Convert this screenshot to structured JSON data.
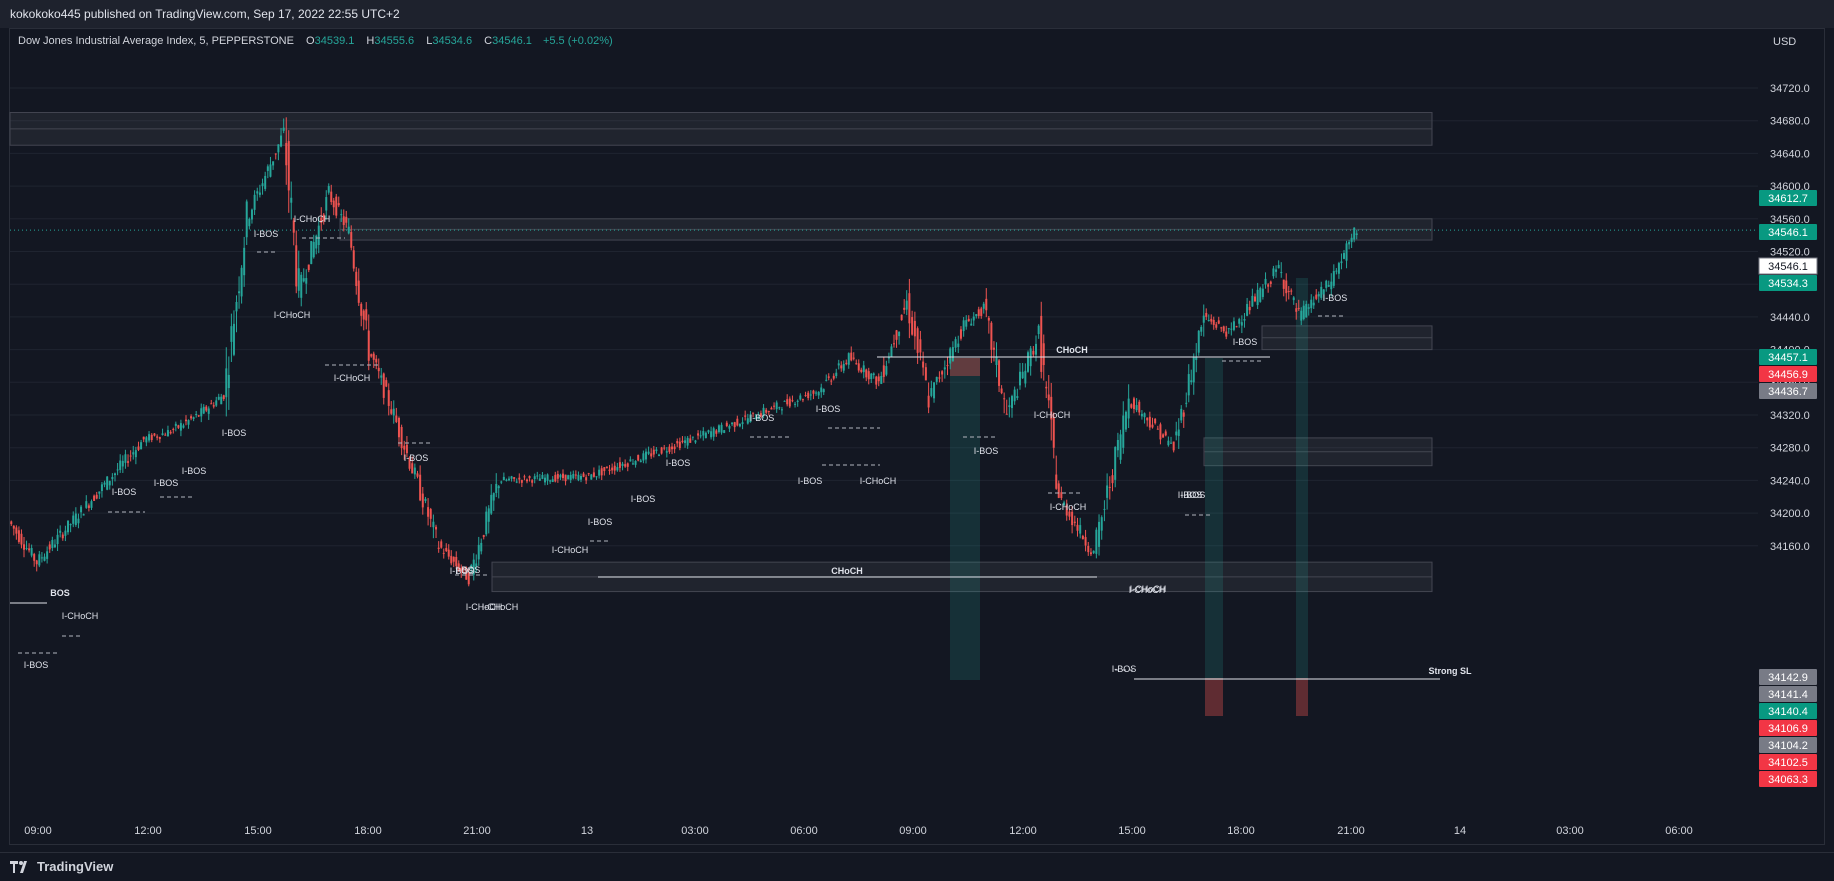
{
  "header": {
    "publisher_text": "kokokoko445 published on TradingView.com, Sep 17, 2022 22:55 UTC+2"
  },
  "legend": {
    "symbol": "Dow Jones Industrial Average Index, 5, PEPPERSTONE",
    "o_label": "O",
    "o_value": "34539.1",
    "h_label": "H",
    "h_value": "34555.6",
    "l_label": "L",
    "l_value": "34534.6",
    "c_label": "C",
    "c_value": "34546.1",
    "change": "+5.5 (+0.02%)"
  },
  "footer": {
    "brand": "TradingView"
  },
  "colors": {
    "background": "#131722",
    "up": "#26a69a",
    "down": "#ef5350",
    "zone_fill": "#2a2e39",
    "zone_border": "#434651",
    "grey_label": "#787b86"
  },
  "chart_data": {
    "type": "candlestick",
    "currency_label": "USD",
    "ylim": [
      34020,
      34760
    ],
    "y_ticks": [
      "34720.0",
      "34680.0",
      "34640.0",
      "34600.0",
      "34560.0",
      "34520.0",
      "34480.0",
      "34440.0",
      "34400.0",
      "34360.0",
      "34320.0",
      "34280.0",
      "34240.0",
      "34200.0",
      "34160.0"
    ],
    "x_ticks": [
      "09:00",
      "12:00",
      "15:00",
      "18:00",
      "21:00",
      "13",
      "03:00",
      "06:00",
      "09:00",
      "12:00",
      "15:00",
      "18:00",
      "21:00",
      "14",
      "03:00",
      "06:00"
    ],
    "price_path": [
      [
        "09:00",
        34190
      ],
      [
        "10:00",
        34140
      ],
      [
        "11:00",
        34290
      ],
      [
        "12:00",
        34300
      ],
      [
        "13:00",
        34320
      ],
      [
        "14:00",
        34345
      ],
      [
        "15:00",
        34560
      ],
      [
        "15:40",
        34665
      ],
      [
        "16:30",
        34470
      ],
      [
        "17:30",
        34590
      ],
      [
        "18:00",
        34545
      ],
      [
        "19:00",
        34400
      ],
      [
        "20:00",
        34320
      ],
      [
        "21:00",
        34160
      ],
      [
        "21:30",
        34120
      ],
      [
        "22:00",
        34240
      ],
      [
        "13",
        34245
      ],
      [
        "01:00",
        34300
      ],
      [
        "03:00",
        34350
      ],
      [
        "06:00",
        34390
      ],
      [
        "07:00",
        34360
      ],
      [
        "08:00",
        34458
      ],
      [
        "09:00",
        34340
      ],
      [
        "10:00",
        34430
      ],
      [
        "11:00",
        34450
      ],
      [
        "12:00",
        34320
      ],
      [
        "13:00",
        34420
      ],
      [
        "14:00",
        34220
      ],
      [
        "15:00",
        34150
      ],
      [
        "16:00",
        34340
      ],
      [
        "17:00",
        34280
      ],
      [
        "18:00",
        34440
      ],
      [
        "19:00",
        34420
      ],
      [
        "19:30",
        34500
      ],
      [
        "20:00",
        34440
      ],
      [
        "21:00",
        34480
      ],
      [
        "21:10",
        34546
      ]
    ],
    "price_labels": [
      {
        "value": "34612.7",
        "color": "#089981"
      },
      {
        "value": "34546.1",
        "color": "#089981"
      },
      {
        "value": "34546.1",
        "color": "#ffffff",
        "text": "#131722"
      },
      {
        "value": "34534.3",
        "color": "#089981"
      },
      {
        "value": "34457.1",
        "color": "#089981"
      },
      {
        "value": "34456.9",
        "color": "#f23645"
      },
      {
        "value": "34436.7",
        "color": "#787b86"
      },
      {
        "value": "34142.9",
        "color": "#787b86"
      },
      {
        "value": "34141.4",
        "color": "#787b86"
      },
      {
        "value": "34140.4",
        "color": "#089981"
      },
      {
        "value": "34106.9",
        "color": "#f23645"
      },
      {
        "value": "34104.2",
        "color": "#787b86"
      },
      {
        "value": "34102.5",
        "color": "#f23645"
      },
      {
        "value": "34063.3",
        "color": "#f23645"
      }
    ],
    "zones": [
      {
        "x0": "08:50",
        "x1": "21:50 (13)",
        "top": 34690,
        "bottom": 34650
      },
      {
        "x0": "18:00",
        "x1": "21:50 (13)",
        "top": 34560,
        "bottom": 34534
      },
      {
        "x0": "21:10",
        "x1": "21:50 (13)",
        "top": 34140,
        "bottom": 34104
      },
      {
        "x0": "19:00 (13)",
        "x1": "21:50 (13)",
        "top": 34429,
        "bottom": 34400
      },
      {
        "x0": "17:00 (13)",
        "x1": "21:50 (13)",
        "top": 34292,
        "bottom": 34258
      }
    ],
    "annotations": [
      "BOS",
      "I-CHoCH",
      "I-BOS",
      "I-BOS",
      "I-BOS",
      "I-BOS",
      "I-BOS",
      "I-BOS",
      "I-CHoCH",
      "I-CHoCH",
      "I-CHoCH",
      "I-BOS",
      "I-BOS",
      "I-CHoCH",
      "I-BOS",
      "I-CHoCH",
      "I-CHoCH",
      "I-BOS",
      "I-BOS",
      "I-BOS",
      "I-BOS",
      "I-BOS",
      "I-BOS",
      "I-CHoCH",
      "CHoCH",
      "CHoCH",
      "I-BOS",
      "I-CHoCH",
      "I-CHoCH",
      "I-CHoCH",
      "I-BOS",
      "I-BOS",
      "I-CHoCH",
      "I-BOS",
      "I-BOS",
      "I-BOS",
      "Strong SL"
    ]
  }
}
